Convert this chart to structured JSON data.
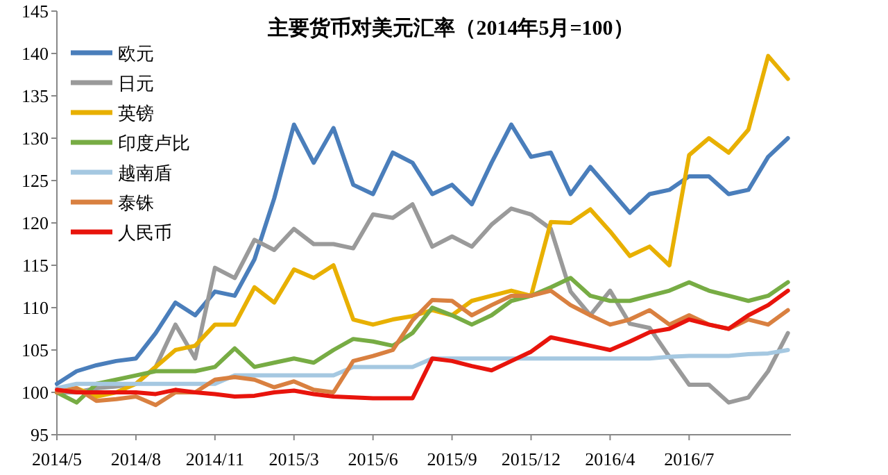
{
  "chart_data": {
    "type": "line",
    "title": "主要货币对美元汇率（2014年5月=100）",
    "categories": [
      "2014/5",
      null,
      null,
      null,
      "2014/8",
      null,
      null,
      null,
      "2014/11",
      null,
      null,
      null,
      "2015/3",
      null,
      null,
      null,
      "2015/6",
      null,
      null,
      null,
      "2015/9",
      null,
      null,
      null,
      "2015/12",
      null,
      null,
      null,
      "2016/4",
      null,
      null,
      null,
      "2016/7",
      null,
      null,
      null,
      null,
      null
    ],
    "ylim": [
      95,
      145
    ],
    "yticks": [
      95,
      100,
      105,
      110,
      115,
      120,
      125,
      130,
      135,
      140,
      145
    ],
    "legend": "top left",
    "grid": false,
    "series": [
      {
        "name": "欧元",
        "color": "#4a7ebb",
        "values": [
          101,
          102.5,
          103.2,
          103.7,
          104,
          107,
          110.6,
          109.1,
          111.9,
          111.4,
          115.7,
          122.9,
          131.6,
          127.1,
          131.2,
          124.5,
          123.4,
          128.3,
          127.1,
          123.4,
          124.5,
          122.2,
          127.1,
          131.6,
          127.8,
          128.3,
          123.4,
          126.6,
          123.9,
          121.2,
          123.4,
          123.9,
          125.5,
          125.5,
          123.4,
          123.9,
          127.8,
          130
        ]
      },
      {
        "name": "日元",
        "color": "#9a9a9a",
        "values": [
          100,
          100,
          100.5,
          100.7,
          101,
          103,
          108,
          104,
          114.7,
          113.5,
          118,
          116.8,
          119.3,
          117.5,
          117.5,
          117,
          121,
          120.6,
          122.2,
          117.2,
          118.4,
          117.2,
          119.8,
          121.7,
          121,
          119.3,
          111.9,
          109.1,
          112,
          108.1,
          107.6,
          104.2,
          100.9,
          100.9,
          98.8,
          99.4,
          102.5,
          107
        ]
      },
      {
        "name": "英镑",
        "color": "#e8b000",
        "values": [
          100,
          100.5,
          99.5,
          100,
          101,
          103,
          105,
          105.5,
          108,
          108,
          112.4,
          110.6,
          114.5,
          113.5,
          115,
          108.6,
          108,
          108.6,
          109,
          109.7,
          109.1,
          110.8,
          111.4,
          112,
          111.4,
          120.1,
          120,
          121.6,
          119,
          116.1,
          117.2,
          115,
          128,
          130,
          128.3,
          131,
          139.7,
          137
        ]
      },
      {
        "name": "印度卢比",
        "color": "#77ac44",
        "values": [
          100,
          98.8,
          101,
          101.5,
          102,
          102.5,
          102.5,
          102.5,
          103,
          105.2,
          103,
          103.5,
          104,
          103.5,
          105,
          106.3,
          106,
          105.5,
          107,
          110,
          109.1,
          108,
          109.1,
          110.8,
          111.4,
          112.4,
          113.5,
          111.4,
          110.8,
          110.8,
          111.4,
          112,
          113,
          112,
          111.4,
          110.8,
          111.4,
          113
        ]
      },
      {
        "name": "越南盾",
        "color": "#a5c8e1",
        "values": [
          100.5,
          101,
          101,
          101,
          101,
          101,
          101,
          101,
          101,
          102,
          102,
          102,
          102,
          102,
          102,
          103,
          103,
          103,
          103,
          104,
          104,
          104,
          104,
          104,
          104,
          104,
          104,
          104,
          104,
          104,
          104,
          104.2,
          104.3,
          104.3,
          104.3,
          104.5,
          104.6,
          105
        ]
      },
      {
        "name": "泰铢",
        "color": "#d98040",
        "values": [
          100,
          100.5,
          99,
          99.2,
          99.5,
          98.5,
          100,
          100,
          101.5,
          101.8,
          101.5,
          100.6,
          101.3,
          100.3,
          100,
          103.7,
          104.3,
          105,
          108.5,
          110.9,
          110.8,
          109.1,
          110.3,
          111.4,
          111.4,
          112,
          110.3,
          109.1,
          108,
          108.6,
          109.7,
          108,
          109.1,
          108,
          107.5,
          108.6,
          108,
          109.7
        ]
      },
      {
        "name": "人民币",
        "color": "#e8140c",
        "values": [
          100.3,
          100,
          100,
          100,
          100,
          99.8,
          100.3,
          100,
          99.8,
          99.5,
          99.6,
          100,
          100.2,
          99.8,
          99.5,
          99.4,
          99.3,
          99.3,
          99.3,
          104,
          103.7,
          103.1,
          102.6,
          103.7,
          104.8,
          106.5,
          106,
          105.5,
          105,
          106,
          107.1,
          107.5,
          108.6,
          108,
          107.5,
          109.1,
          110.3,
          112
        ]
      }
    ]
  }
}
